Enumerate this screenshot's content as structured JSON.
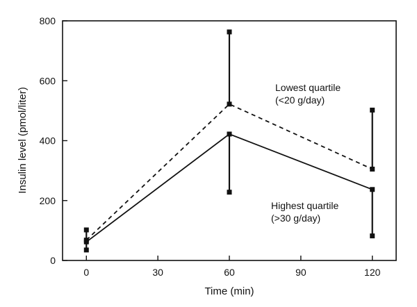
{
  "chart_data": {
    "type": "line",
    "xlabel": "Time (min)",
    "ylabel": "Insulin level (pmol/liter)",
    "xlim": [
      -10,
      130
    ],
    "ylim": [
      0,
      800
    ],
    "x_ticks": [
      0,
      30,
      60,
      90,
      120
    ],
    "y_ticks": [
      0,
      200,
      400,
      600,
      800
    ],
    "x_tick_labels": [
      "0",
      "30",
      "60",
      "90",
      "120"
    ],
    "y_tick_labels": [
      "0",
      "200",
      "400",
      "600",
      "800"
    ],
    "grid": false,
    "legend": "none",
    "series": [
      {
        "label": "Lowest quartile (<20 g/day)",
        "line_style": "dashed",
        "x": [
          0,
          60,
          120
        ],
        "y": [
          68,
          522,
          305
        ],
        "error_low": [
          68,
          522,
          305
        ],
        "error_high": [
          102,
          763,
          502
        ]
      },
      {
        "label": "Highest quartile (>30 g/day)",
        "line_style": "solid",
        "x": [
          0,
          60,
          120
        ],
        "y": [
          62,
          422,
          237
        ],
        "error_low": [
          35,
          228,
          82
        ],
        "error_high": [
          62,
          422,
          237
        ]
      }
    ],
    "annotations": [
      {
        "lines": [
          "Lowest quartile",
          "(<20 g/day)"
        ]
      },
      {
        "lines": [
          "Highest quartile",
          "(>30 g/day)"
        ]
      }
    ]
  }
}
